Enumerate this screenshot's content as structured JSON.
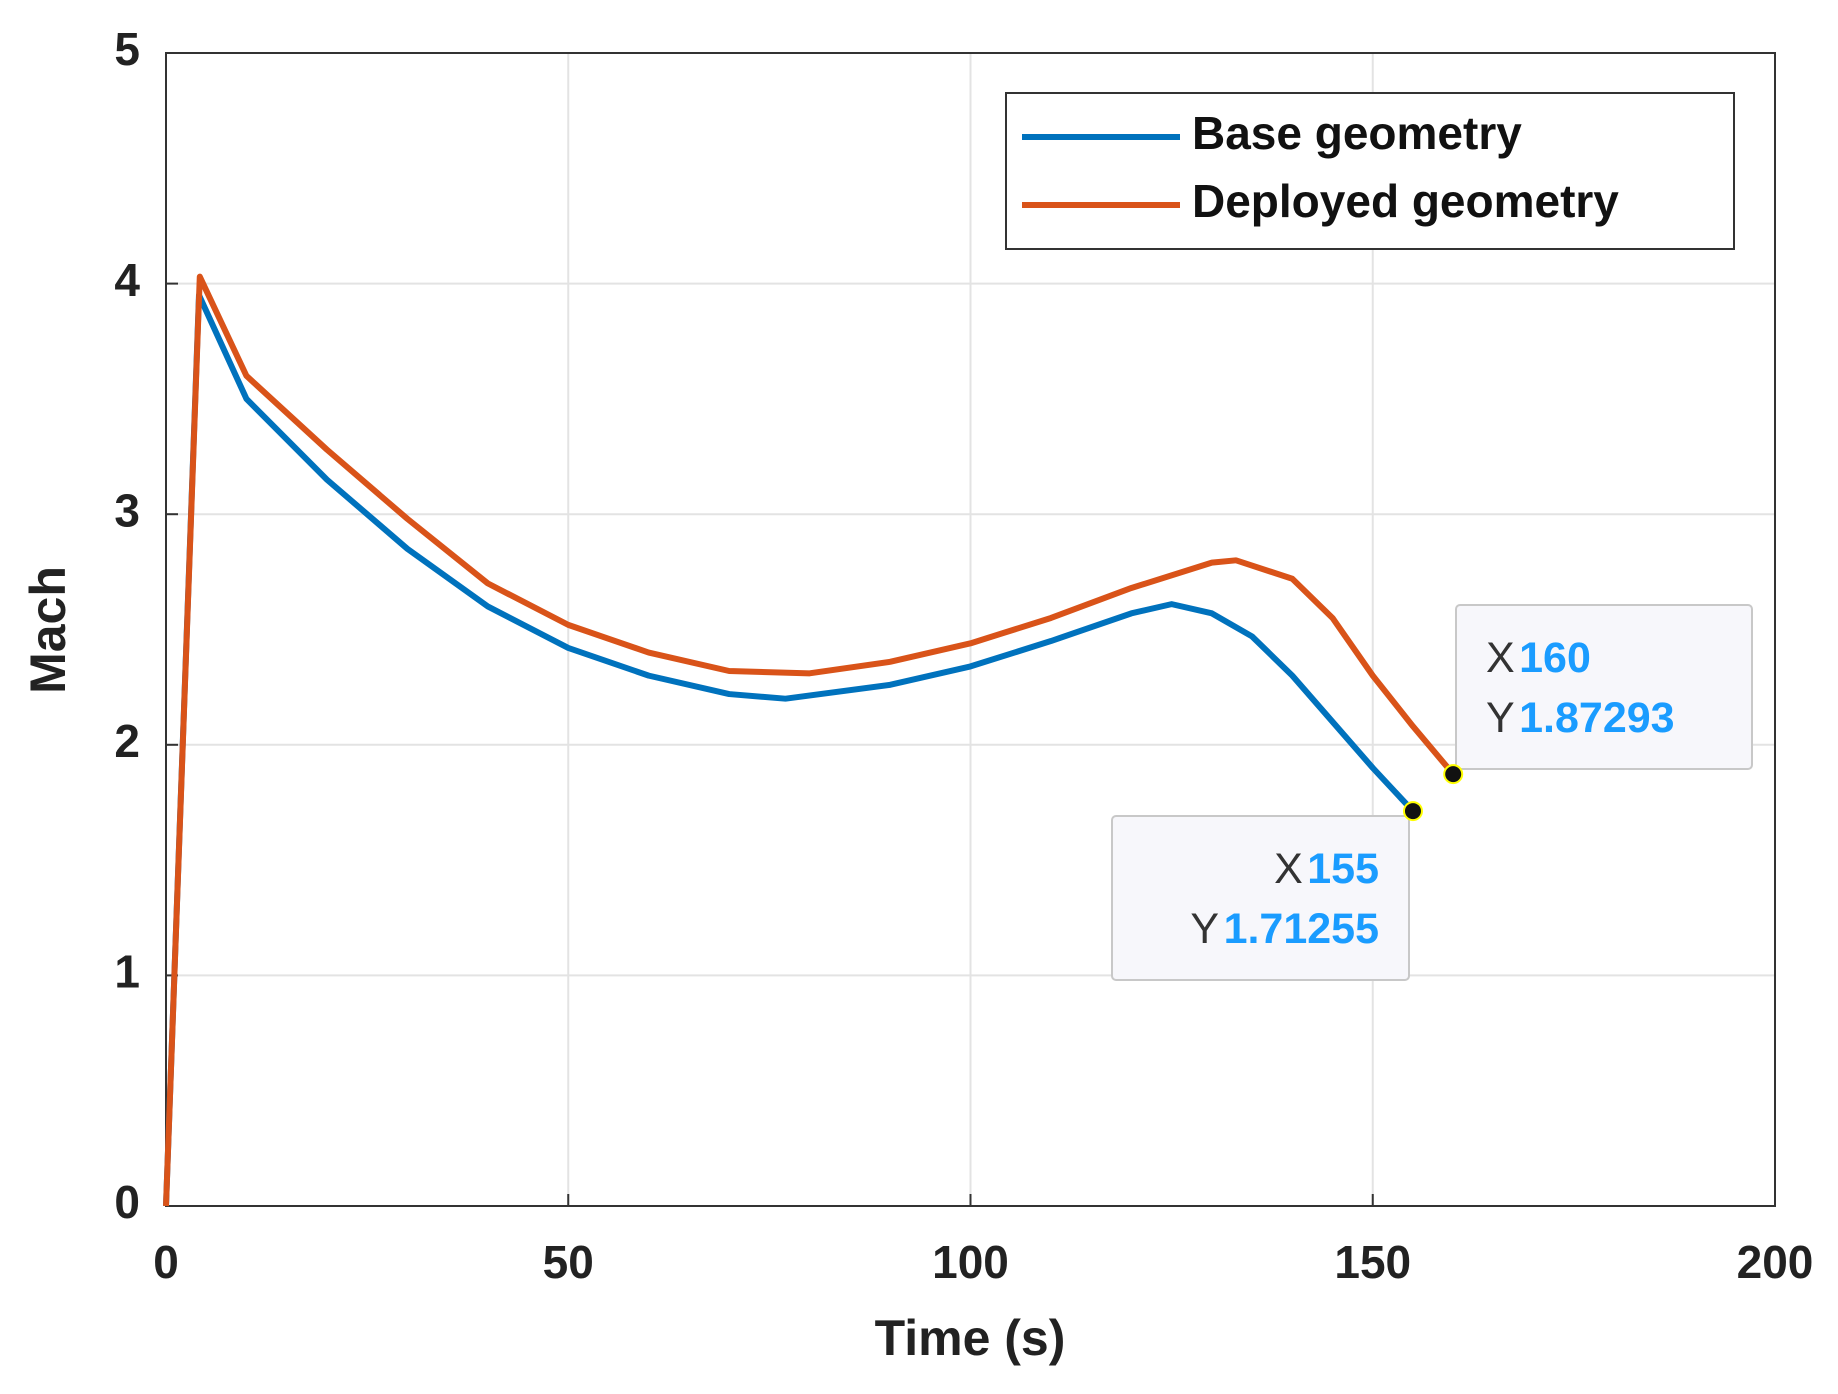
{
  "chart_data": {
    "type": "line",
    "xlabel": "Time (s)",
    "ylabel": "Mach",
    "xlim": [
      0,
      200
    ],
    "xticks": [
      0,
      50,
      100,
      150,
      200
    ],
    "ylim": [
      0,
      5
    ],
    "yticks": [
      0,
      1,
      2,
      3,
      4,
      5
    ],
    "grid": true,
    "legend": "upper right",
    "series": [
      {
        "name": "Base geometry",
        "color": "#0072bd",
        "x": [
          0,
          4.1,
          10,
          20,
          30,
          40,
          50,
          60,
          70,
          77,
          90,
          100,
          110,
          120,
          125,
          130,
          135,
          140,
          145,
          150,
          155
        ],
        "values": [
          0,
          3.95,
          3.5,
          3.15,
          2.85,
          2.6,
          2.42,
          2.3,
          2.22,
          2.2,
          2.26,
          2.34,
          2.45,
          2.57,
          2.61,
          2.57,
          2.47,
          2.3,
          2.1,
          1.9,
          1.71255
        ]
      },
      {
        "name": "Deployed geometry",
        "color": "#d95319",
        "x": [
          0,
          4.2,
          10,
          20,
          30,
          40,
          50,
          60,
          70,
          80,
          90,
          100,
          110,
          120,
          130,
          133,
          140,
          145,
          150,
          155,
          160
        ],
        "values": [
          0,
          4.03,
          3.6,
          3.28,
          2.98,
          2.7,
          2.52,
          2.4,
          2.32,
          2.31,
          2.36,
          2.44,
          2.55,
          2.68,
          2.79,
          2.8,
          2.72,
          2.55,
          2.3,
          2.08,
          1.87293
        ]
      }
    ],
    "datatips": [
      {
        "x_label": "X",
        "x": 155,
        "y_label": "Y",
        "y": 1.71255
      },
      {
        "x_label": "X",
        "x": 160,
        "y_label": "Y",
        "y": 1.87293
      }
    ]
  }
}
